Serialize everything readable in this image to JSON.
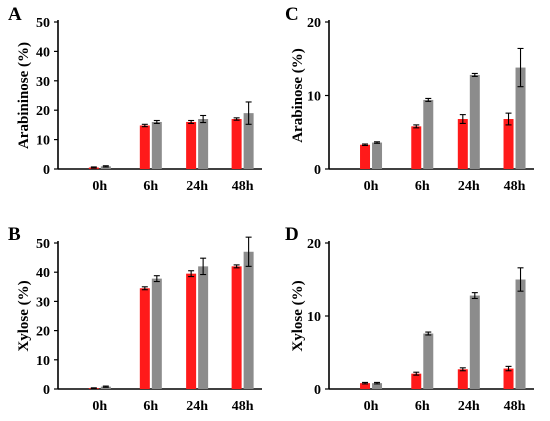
{
  "colors": {
    "red": "#ff1a1a",
    "gray": "#8c8c8c"
  },
  "chart_data": [
    {
      "type": "bar",
      "panel_label": "A",
      "title": "",
      "xlabel": "",
      "ylabel": "Arabininose (%)",
      "categories": [
        "0h",
        "6h",
        "24h",
        "48h"
      ],
      "ylim": [
        0,
        50
      ],
      "yticks": [
        0,
        10,
        20,
        30,
        40,
        50
      ],
      "yticklabels": [
        "0",
        "10",
        "20",
        "30",
        "40",
        "50"
      ],
      "series": [
        {
          "values": [
            0.5,
            14.8,
            16.0,
            17.0
          ],
          "errors": [
            0.2,
            0.4,
            0.5,
            0.4
          ],
          "color": "#ff1a1a"
        },
        {
          "values": [
            0.9,
            16.0,
            17.0,
            19.0
          ],
          "errors": [
            0.2,
            0.5,
            1.2,
            3.8
          ],
          "color": "#8c8c8c"
        }
      ]
    },
    {
      "type": "bar",
      "panel_label": "C",
      "title": "",
      "xlabel": "",
      "ylabel": "Arabinose (%)",
      "categories": [
        "0h",
        "6h",
        "24h",
        "48h"
      ],
      "ylim": [
        0,
        20
      ],
      "yticks": [
        0,
        10,
        20
      ],
      "yticklabels": [
        "0",
        "10",
        "20"
      ],
      "series": [
        {
          "values": [
            3.3,
            5.8,
            6.8,
            6.8
          ],
          "errors": [
            0.1,
            0.2,
            0.6,
            0.8
          ],
          "color": "#ff1a1a"
        },
        {
          "values": [
            3.6,
            9.4,
            12.8,
            13.8
          ],
          "errors": [
            0.1,
            0.2,
            0.2,
            2.6
          ],
          "color": "#8c8c8c"
        }
      ]
    },
    {
      "type": "bar",
      "panel_label": "B",
      "title": "",
      "xlabel": "",
      "ylabel": "Xylose (%)",
      "categories": [
        "0h",
        "6h",
        "24h",
        "48h"
      ],
      "ylim": [
        0,
        50
      ],
      "yticks": [
        0,
        10,
        20,
        30,
        40,
        50
      ],
      "yticklabels": [
        "0",
        "10",
        "20",
        "30",
        "40",
        "50"
      ],
      "series": [
        {
          "values": [
            0.3,
            34.5,
            39.5,
            42.0
          ],
          "errors": [
            0.1,
            0.5,
            1.0,
            0.5
          ],
          "color": "#ff1a1a"
        },
        {
          "values": [
            0.8,
            37.8,
            42.0,
            47.0
          ],
          "errors": [
            0.2,
            1.0,
            2.8,
            5.0
          ],
          "color": "#8c8c8c"
        }
      ]
    },
    {
      "type": "bar",
      "panel_label": "D",
      "title": "",
      "xlabel": "",
      "ylabel": "Xylose (%)",
      "categories": [
        "0h",
        "6h",
        "24h",
        "48h"
      ],
      "ylim": [
        0,
        20
      ],
      "yticks": [
        0,
        10,
        20
      ],
      "yticklabels": [
        "0",
        "10",
        "20"
      ],
      "series": [
        {
          "values": [
            0.8,
            2.1,
            2.7,
            2.8
          ],
          "errors": [
            0.1,
            0.2,
            0.2,
            0.3
          ],
          "color": "#ff1a1a"
        },
        {
          "values": [
            0.8,
            7.6,
            12.8,
            15.0
          ],
          "errors": [
            0.1,
            0.2,
            0.4,
            1.6
          ],
          "color": "#8c8c8c"
        }
      ]
    }
  ]
}
